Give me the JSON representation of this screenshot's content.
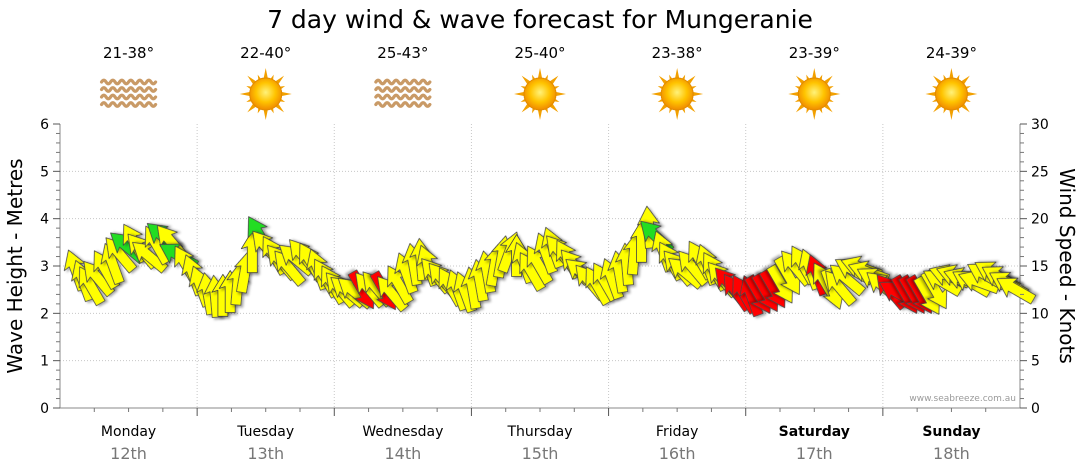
{
  "chart_data": {
    "type": "forecast",
    "title": "7 day wind & wave forecast for Mungeranie",
    "ylabel_left": "Wave Height - Metres",
    "ylabel_right": "Wind Speed - Knots",
    "ylim_left": [
      0,
      6
    ],
    "ylim_right": [
      0,
      30
    ],
    "yticks_left": [
      "0",
      "1",
      "2",
      "3",
      "4",
      "5",
      "6"
    ],
    "yticks_right": [
      "0",
      "5",
      "10",
      "15",
      "20",
      "25",
      "30"
    ],
    "credit": "www.seabreeze.com.au",
    "days": [
      {
        "name": "Monday",
        "date": "12th",
        "temp": "21-38°",
        "weather": "haze",
        "bold": false
      },
      {
        "name": "Tuesday",
        "date": "13th",
        "temp": "22-40°",
        "weather": "sunny",
        "bold": false
      },
      {
        "name": "Wednesday",
        "date": "14th",
        "temp": "25-43°",
        "weather": "haze",
        "bold": false
      },
      {
        "name": "Thursday",
        "date": "15th",
        "temp": "25-40°",
        "weather": "sunny",
        "bold": false
      },
      {
        "name": "Friday",
        "date": "16th",
        "temp": "23-38°",
        "weather": "sunny",
        "bold": false
      },
      {
        "name": "Saturday",
        "date": "17th",
        "temp": "23-39°",
        "weather": "sunny",
        "bold": true
      },
      {
        "name": "Sunday",
        "date": "18th",
        "temp": "24-39°",
        "weather": "sunny",
        "bold": true
      }
    ],
    "wind_speed_series": [
      14.5,
      13.4,
      12.9,
      13.7,
      14.6,
      15.2,
      16.2,
      17.0,
      17.4,
      16.6,
      16.0,
      17.2,
      18.0,
      17.5,
      16.1,
      15.1,
      14.0,
      12.8,
      12.0,
      11.7,
      11.8,
      12.2,
      13.0,
      14.3,
      16.4,
      18.2,
      16.9,
      16.1,
      15.4,
      14.8,
      15.7,
      16.0,
      15.4,
      14.6,
      13.7,
      13.0,
      12.5,
      12.3,
      12.2,
      12.5,
      12.5,
      12.6,
      12.4,
      12.1,
      13.0,
      14.2,
      15.1,
      15.6,
      15.0,
      14.0,
      13.5,
      12.8,
      12.4,
      12.2,
      12.6,
      13.4,
      14.3,
      15.0,
      15.9,
      16.4,
      16.0,
      15.3,
      14.4,
      15.1,
      16.3,
      16.9,
      16.4,
      15.7,
      14.9,
      14.2,
      13.3,
      12.9,
      13.3,
      13.6,
      14.3,
      15.1,
      16.2,
      17.5,
      19.0,
      18.1,
      16.5,
      15.5,
      14.8,
      14.3,
      14.8,
      15.6,
      15.1,
      14.4,
      13.6,
      13.0,
      12.2,
      12.0,
      11.8,
      12.0,
      12.2,
      12.6,
      13.1,
      14.0,
      14.8,
      15.1,
      14.6,
      14.0,
      13.3,
      12.6,
      12.7,
      13.6,
      14.5,
      14.8,
      14.3,
      13.5,
      12.8,
      12.3,
      12.1,
      12.0,
      12.0,
      12.0,
      11.9,
      12.5,
      13.3,
      13.9,
      13.9,
      13.6,
      13.2,
      13.3,
      14.0,
      14.2,
      13.7,
      13.1,
      12.5
    ],
    "wind_direction_deg": [
      340,
      340,
      330,
      320,
      330,
      340,
      320,
      310,
      330,
      320,
      310,
      330,
      310,
      320,
      300,
      330,
      340,
      340,
      350,
      355,
      0,
      0,
      5,
      10,
      0,
      330,
      320,
      330,
      320,
      320,
      310,
      320,
      330,
      340,
      330,
      330,
      320,
      310,
      310,
      150,
      320,
      320,
      150,
      320,
      330,
      340,
      350,
      355,
      340,
      320,
      320,
      330,
      340,
      340,
      350,
      350,
      350,
      10,
      10,
      20,
      0,
      340,
      330,
      330,
      340,
      340,
      320,
      330,
      320,
      310,
      320,
      330,
      330,
      340,
      350,
      355,
      5,
      0,
      355,
      315,
      340,
      330,
      320,
      310,
      320,
      330,
      340,
      330,
      320,
      320,
      325,
      330,
      340,
      150,
      150,
      150,
      150,
      150,
      320,
      330,
      340,
      340,
      330,
      160,
      320,
      310,
      300,
      290,
      290,
      300,
      310,
      320,
      300,
      150,
      150,
      150,
      150,
      150,
      300,
      290,
      290,
      290,
      300,
      290,
      300,
      300,
      300,
      300,
      300
    ],
    "wind_strength_class": [
      "light",
      "light",
      "light",
      "light",
      "light",
      "light",
      "light",
      "strong",
      "light",
      "light",
      "light",
      "light",
      "strong",
      "light",
      "strong",
      "light",
      "light",
      "light",
      "light",
      "light",
      "light",
      "light",
      "light",
      "light",
      "light",
      "strong",
      "light",
      "light",
      "light",
      "light",
      "light",
      "light",
      "light",
      "light",
      "light",
      "light",
      "light",
      "light",
      "light",
      "moderate",
      "light",
      "light",
      "moderate",
      "light",
      "light",
      "light",
      "light",
      "light",
      "light",
      "light",
      "light",
      "light",
      "light",
      "light",
      "light",
      "light",
      "light",
      "light",
      "light",
      "light",
      "light",
      "light",
      "light",
      "light",
      "light",
      "light",
      "light",
      "light",
      "light",
      "light",
      "light",
      "light",
      "light",
      "light",
      "light",
      "light",
      "light",
      "light",
      "light",
      "strong",
      "light",
      "light",
      "light",
      "light",
      "light",
      "light",
      "light",
      "light",
      "light",
      "moderate",
      "moderate",
      "moderate",
      "moderate",
      "moderate",
      "moderate",
      "moderate",
      "light",
      "light",
      "light",
      "light",
      "light",
      "moderate",
      "light",
      "light",
      "light",
      "light",
      "light",
      "light",
      "light",
      "light",
      "light",
      "moderate",
      "moderate",
      "moderate",
      "moderate",
      "moderate",
      "light",
      "light",
      "light",
      "light",
      "light",
      "light",
      "light",
      "light",
      "light",
      "light",
      "light"
    ],
    "wind_colors": {
      "light": "#ffff00",
      "strong": "#22dd22",
      "moderate": "#ff0000"
    }
  }
}
